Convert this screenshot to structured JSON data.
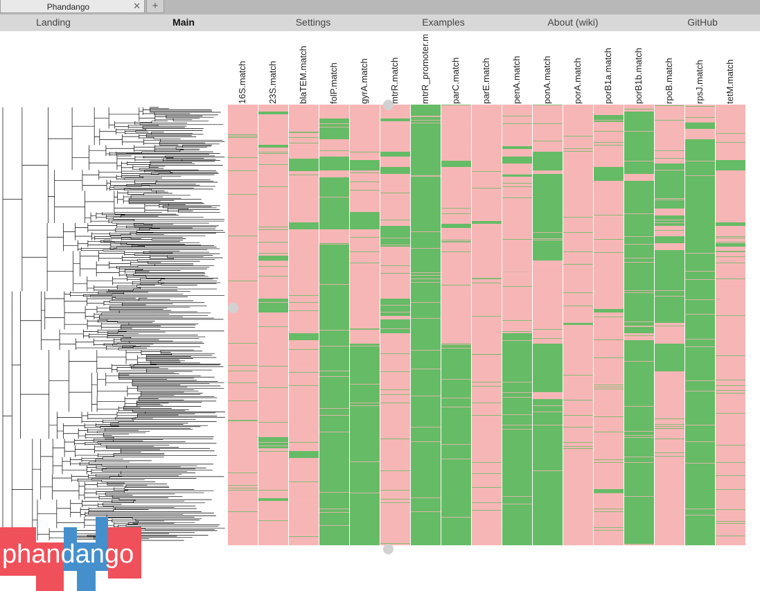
{
  "browser": {
    "tab_title": "Phandango",
    "close_glyph": "✕",
    "new_tab_glyph": "+"
  },
  "nav": [
    {
      "label": "Landing",
      "active": false
    },
    {
      "label": "Main",
      "active": true
    },
    {
      "label": "Settings",
      "active": false
    },
    {
      "label": "Examples",
      "active": false
    },
    {
      "label": "About (wiki)",
      "active": false
    },
    {
      "label": "GitHub",
      "active": false
    }
  ],
  "columns": [
    "16S.match",
    "23S.match",
    "blaTEM.match",
    "folP.match",
    "gyrA.match",
    "mtrR.match",
    "mtrR_promoter.match",
    "parC.match",
    "parE.match",
    "penA.match",
    "ponA.match",
    "porA.match",
    "porB1a.match",
    "porB1b.match",
    "rpoB.match",
    "rpsJ.match",
    "tetM.match"
  ],
  "colors": {
    "match": "#66bb66",
    "no_match": "#f7b6b6",
    "divider": "#ffffff",
    "tree": "#000000"
  },
  "logo": {
    "text": "phandango",
    "red": "#f0505a",
    "blue": "#4590cc"
  },
  "icons": {
    "handle": "drag-handle-icon"
  }
}
